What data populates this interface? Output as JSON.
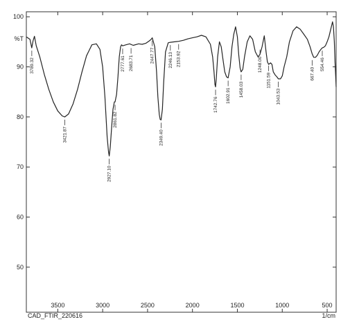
{
  "chart_data": {
    "type": "line",
    "title": "",
    "xlabel": "",
    "ylabel": "%T",
    "x_unit": "1/cm",
    "x_reversed": true,
    "xlim": [
      3850,
      400
    ],
    "ylim": [
      41,
      101
    ],
    "x_ticks": [
      3500,
      3000,
      2500,
      2000,
      1500,
      1000,
      500
    ],
    "y_ticks": [
      100,
      90,
      80,
      70,
      60,
      50
    ],
    "grid": false,
    "sample_label": "CAD_FTIR_220616",
    "series": [
      {
        "name": "",
        "x": [
          3850,
          3810,
          3790,
          3775,
          3760,
          3740,
          3700,
          3650,
          3600,
          3550,
          3500,
          3450,
          3421.87,
          3380,
          3330,
          3280,
          3230,
          3180,
          3120,
          3070,
          3030,
          3000,
          2975,
          2950,
          2935,
          2927.1,
          2915,
          2900,
          2885,
          2870,
          2861.82,
          2845,
          2830,
          2815,
          2800,
          2790,
          2777.61,
          2740,
          2700,
          2660,
          2600,
          2560,
          2520,
          2480,
          2460,
          2447.77,
          2420,
          2400,
          2385,
          2370,
          2360,
          2349.4,
          2335,
          2320,
          2300,
          2270,
          2246.13,
          2200,
          2153.92,
          2100,
          2050,
          2000,
          1950,
          1900,
          1850,
          1800,
          1775,
          1760,
          1750,
          1742.76,
          1735,
          1720,
          1700,
          1680,
          1660,
          1640,
          1620,
          1602.91,
          1580,
          1560,
          1540,
          1520,
          1500,
          1485,
          1470,
          1458.03,
          1440,
          1420,
          1390,
          1360,
          1330,
          1300,
          1270,
          1248.0,
          1225,
          1200,
          1180,
          1166,
          1151.59,
          1130,
          1115,
          1100,
          1080,
          1060,
          1043.53,
          1020,
          1000,
          980,
          950,
          920,
          880,
          840,
          800,
          760,
          720,
          690,
          667.4,
          650,
          630,
          610,
          590,
          570,
          554.46,
          540,
          520,
          500,
          480,
          460,
          440,
          430,
          420,
          412,
          405,
          400
        ],
        "y": [
          96.0,
          95.5,
          93.8,
          95.2,
          96.1,
          94.2,
          92.0,
          88.5,
          85.5,
          83.0,
          81.2,
          80.2,
          80.0,
          80.6,
          82.6,
          85.5,
          89.0,
          92.2,
          94.4,
          94.6,
          93.5,
          90.0,
          84.0,
          76.0,
          73.0,
          72.2,
          74.0,
          78.0,
          81.5,
          83.0,
          83.0,
          84.5,
          88.0,
          92.0,
          94.0,
          94.4,
          94.2,
          94.4,
          94.6,
          94.3,
          94.6,
          94.5,
          94.7,
          95.2,
          95.5,
          95.8,
          94.0,
          89.0,
          84.0,
          80.5,
          79.5,
          79.4,
          81.5,
          87.0,
          93.0,
          94.8,
          94.9,
          95.0,
          95.1,
          95.3,
          95.6,
          95.8,
          96.0,
          96.3,
          96.0,
          94.5,
          92.0,
          89.0,
          86.5,
          86.0,
          87.5,
          92.0,
          95.0,
          94.0,
          91.5,
          89.0,
          88.0,
          87.8,
          90.0,
          94.0,
          96.5,
          98.0,
          96.0,
          92.5,
          89.8,
          89.0,
          89.5,
          92.0,
          95.0,
          96.2,
          95.5,
          93.0,
          92.0,
          92.5,
          94.0,
          96.2,
          93.0,
          91.0,
          90.5,
          90.8,
          90.5,
          89.0,
          88.4,
          88.0,
          87.6,
          87.6,
          88.2,
          90.0,
          92.0,
          95.0,
          97.2,
          98.0,
          97.5,
          96.5,
          95.5,
          94.0,
          92.6,
          91.9,
          91.9,
          92.3,
          93.0,
          93.5,
          93.8,
          93.9,
          94.2,
          95.0,
          96.0,
          97.5,
          99.0,
          98.0,
          95.0,
          91.0,
          88.0,
          86.0
        ]
      }
    ],
    "peak_labels": [
      {
        "x": 3789.32,
        "y": 93.8,
        "text": "3789.32"
      },
      {
        "x": 3421.87,
        "y": 80.0,
        "text": "3421.87"
      },
      {
        "x": 2927.1,
        "y": 72.2,
        "text": "2927.10"
      },
      {
        "x": 2861.82,
        "y": 83.0,
        "text": "2861.82"
      },
      {
        "x": 2777.61,
        "y": 94.2,
        "text": "2777.61"
      },
      {
        "x": 2683.71,
        "y": 94.3,
        "text": "2683.71"
      },
      {
        "x": 2447.77,
        "y": 95.8,
        "text": "2447.77"
      },
      {
        "x": 2349.4,
        "y": 79.4,
        "text": "2349.40"
      },
      {
        "x": 2246.13,
        "y": 94.9,
        "text": "2246.13"
      },
      {
        "x": 2153.92,
        "y": 95.1,
        "text": "2153.92"
      },
      {
        "x": 1742.76,
        "y": 86.0,
        "text": "1742.76"
      },
      {
        "x": 1602.91,
        "y": 87.8,
        "text": "1602.91"
      },
      {
        "x": 1458.03,
        "y": 89.0,
        "text": "1458.03"
      },
      {
        "x": 1248.0,
        "y": 94.0,
        "text": "1248.00"
      },
      {
        "x": 1151.59,
        "y": 90.8,
        "text": "1151.59"
      },
      {
        "x": 1043.53,
        "y": 87.6,
        "text": "1043.53"
      },
      {
        "x": 667.4,
        "y": 91.9,
        "text": "667.40"
      },
      {
        "x": 554.46,
        "y": 93.8,
        "text": "554.46"
      }
    ],
    "colors": {
      "line": "#222222",
      "axis": "#333333",
      "background": "#ffffff"
    }
  }
}
